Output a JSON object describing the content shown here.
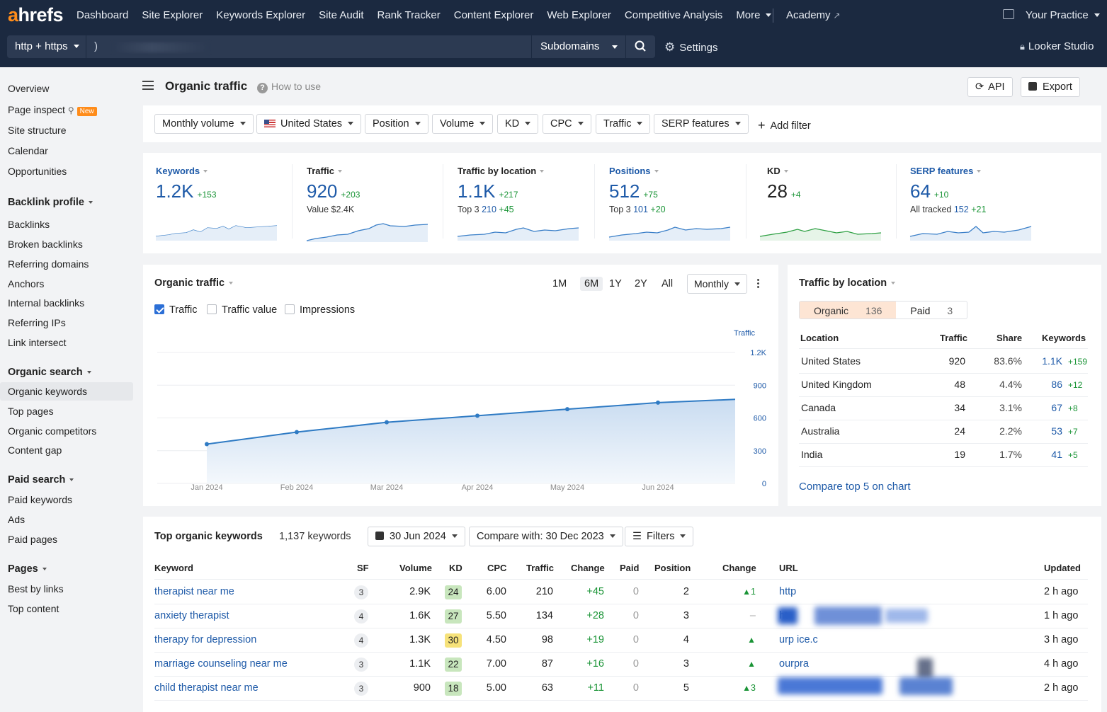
{
  "app": {
    "logo_a": "a",
    "logo_rest": "hrefs"
  },
  "nav": [
    "Dashboard",
    "Site Explorer",
    "Keywords Explorer",
    "Site Audit",
    "Rank Tracker",
    "Content Explorer",
    "Web Explorer",
    "Competitive Analysis",
    "More"
  ],
  "academy": "Academy",
  "workspace": "Your Practice",
  "urlbar": {
    "protocol": "http + https",
    "url_fragment": ")",
    "mode": "Subdomains",
    "settings": "Settings",
    "looker": "Looker Studio"
  },
  "sidebar": {
    "top": [
      "Overview",
      "Page inspect",
      "Site structure",
      "Calendar",
      "Opportunities"
    ],
    "new_badge": "New",
    "backlink_header": "Backlink profile",
    "backlink": [
      "Backlinks",
      "Broken backlinks",
      "Referring domains",
      "Anchors",
      "Internal backlinks",
      "Referring IPs",
      "Link intersect"
    ],
    "organic_header": "Organic search",
    "organic": [
      "Organic keywords",
      "Top pages",
      "Organic competitors",
      "Content gap"
    ],
    "paid_header": "Paid search",
    "paid": [
      "Paid keywords",
      "Ads",
      "Paid pages"
    ],
    "pages_header": "Pages",
    "pages": [
      "Best by links",
      "Top content"
    ]
  },
  "page": {
    "title": "Organic traffic",
    "how_to": "How to use",
    "api": "API",
    "export": "Export"
  },
  "filters": [
    "Monthly volume",
    "United States",
    "Position",
    "Volume",
    "KD",
    "CPC",
    "Traffic",
    "SERP features"
  ],
  "add_filter": "Add filter",
  "metrics": [
    {
      "label": "Keywords",
      "value": "1.2K",
      "delta": "+153",
      "sub": ""
    },
    {
      "label": "Traffic",
      "value": "920",
      "delta": "+203",
      "sub": "Value $2.4K"
    },
    {
      "label": "Traffic by location",
      "value": "1.1K",
      "delta": "+217",
      "sub_label": "Top 3",
      "sub_val": "210",
      "sub_delta": "+45"
    },
    {
      "label": "Positions",
      "value": "512",
      "delta": "+75",
      "sub_label": "Top 3",
      "sub_val": "101",
      "sub_delta": "+20"
    },
    {
      "label": "KD",
      "value": "28",
      "delta": "+4",
      "sub": ""
    },
    {
      "label": "SERP features",
      "value": "64",
      "delta": "+10",
      "sub_label": "All tracked",
      "sub_val": "152",
      "sub_delta": "+21"
    }
  ],
  "traffic_chart": {
    "title": "Organic traffic",
    "ranges": [
      "1M",
      "6M",
      "1Y",
      "2Y",
      "All"
    ],
    "active_range": "6M",
    "interval": "Monthly",
    "checkboxes": [
      {
        "label": "Traffic",
        "checked": true
      },
      {
        "label": "Traffic value",
        "checked": false
      },
      {
        "label": "Impressions",
        "checked": false
      }
    ]
  },
  "chart_data": {
    "type": "area",
    "series": [
      {
        "name": "Traffic",
        "values": [
          360,
          470,
          560,
          620,
          680,
          740,
          770
        ]
      }
    ],
    "x": [
      "Jan 2024",
      "Feb 2024",
      "Mar 2024",
      "Apr 2024",
      "May 2024",
      "Jun 2024",
      ""
    ],
    "ylabel": "Traffic",
    "yticks": [
      "1.2K",
      "900",
      "600",
      "300",
      "0"
    ],
    "ylim": [
      0,
      1200
    ]
  },
  "location": {
    "title": "Traffic by location",
    "tab_organic": "Organic",
    "organic_n": "136",
    "tab_paid": "Paid",
    "paid_n": "3",
    "headers": [
      "Location",
      "Traffic",
      "Share",
      "Keywords"
    ],
    "rows": [
      {
        "loc": "United States",
        "traffic": "920",
        "share": "83.6%",
        "kw": "1.1K",
        "kwd": "+159"
      },
      {
        "loc": "United Kingdom",
        "traffic": "48",
        "share": "4.4%",
        "kw": "86",
        "kwd": "+12"
      },
      {
        "loc": "Canada",
        "traffic": "34",
        "share": "3.1%",
        "kw": "67",
        "kwd": "+8"
      },
      {
        "loc": "Australia",
        "traffic": "24",
        "share": "2.2%",
        "kw": "53",
        "kwd": "+7"
      },
      {
        "loc": "India",
        "traffic": "19",
        "share": "1.7%",
        "kw": "41",
        "kwd": "+5"
      }
    ],
    "compare": "Compare top 5 on chart"
  },
  "keywords": {
    "title": "Top organic keywords",
    "count": "1,137 keywords",
    "date": "30 Jun 2024",
    "compare": "Compare with: 30 Dec 2023",
    "filters": "Filters",
    "headers": [
      "Keyword",
      "SF",
      "Volume",
      "KD",
      "CPC",
      "Traffic",
      "Change",
      "Paid",
      "Position",
      "Change",
      "URL",
      "Updated"
    ],
    "rows": [
      {
        "kw": "therapist near me",
        "sf": "3",
        "vol": "2.9K",
        "kd": "24",
        "kdc": "#c8e6bd",
        "cpc": "6.00",
        "traffic": "210",
        "chg": "+45",
        "paid": "0",
        "pos": "2",
        "pchg": "1",
        "url": "http",
        "upd": "2 h ago"
      },
      {
        "kw": "anxiety therapist",
        "sf": "4",
        "vol": "1.6K",
        "kd": "27",
        "kdc": "#c8e6bd",
        "cpc": "5.50",
        "traffic": "134",
        "chg": "+28",
        "paid": "0",
        "pos": "3",
        "pchg": "–",
        "url": "ht",
        "upd": "1 h ago"
      },
      {
        "kw": "therapy for depression",
        "sf": "4",
        "vol": "1.3K",
        "kd": "30",
        "kdc": "#f6e27a",
        "cpc": "4.50",
        "traffic": "98",
        "chg": "+19",
        "paid": "0",
        "pos": "4",
        "pchg": "",
        "url": "urp   ice.c",
        "upd": "3 h ago"
      },
      {
        "kw": "marriage counseling near me",
        "sf": "3",
        "vol": "1.1K",
        "kd": "22",
        "kdc": "#c8e6bd",
        "cpc": "7.00",
        "traffic": "87",
        "chg": "+16",
        "paid": "0",
        "pos": "3",
        "pchg": "",
        "url": "ourpra",
        "upd": "4 h ago"
      },
      {
        "kw": "child therapist near me",
        "sf": "3",
        "vol": "900",
        "kd": "18",
        "kdc": "#c8e6bd",
        "cpc": "5.00",
        "traffic": "63",
        "chg": "+11",
        "paid": "0",
        "pos": "5",
        "pchg": "3",
        "url": "",
        "upd": "2 h ago"
      }
    ]
  }
}
